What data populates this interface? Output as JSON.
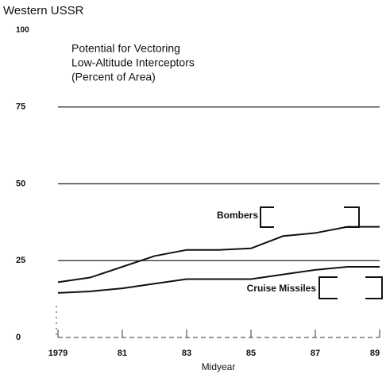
{
  "chart_data": {
    "type": "line",
    "title": "Western USSR",
    "subtitle": [
      "Potential for Vectoring",
      "Low-Altitude Interceptors",
      "(Percent of Area)"
    ],
    "x_label": "Midyear",
    "x": [
      1979,
      1980,
      1981,
      1982,
      1983,
      1984,
      1985,
      1986,
      1987,
      1988,
      1989
    ],
    "series": [
      {
        "name": "Bombers",
        "color": "#111111",
        "values": [
          18,
          19.5,
          23,
          26.5,
          28.5,
          28.5,
          29,
          33,
          34,
          36,
          36
        ]
      },
      {
        "name": "Cruise Missiles",
        "color": "#111111",
        "values": [
          14.5,
          15,
          16,
          17.5,
          19,
          19,
          19,
          20.5,
          22,
          23,
          23
        ]
      }
    ],
    "xlim": [
      1979,
      1989
    ],
    "xticks": [
      1979,
      {
        "value": 1981,
        "label": "81"
      },
      {
        "value": 1983,
        "label": "83"
      },
      {
        "value": 1985,
        "label": "85"
      },
      {
        "value": 1987,
        "label": "87"
      },
      {
        "value": 1989,
        "label": "89"
      }
    ],
    "ylim": [
      0,
      100
    ],
    "yticks": [
      0,
      25,
      50,
      75,
      100
    ],
    "grid": true
  }
}
